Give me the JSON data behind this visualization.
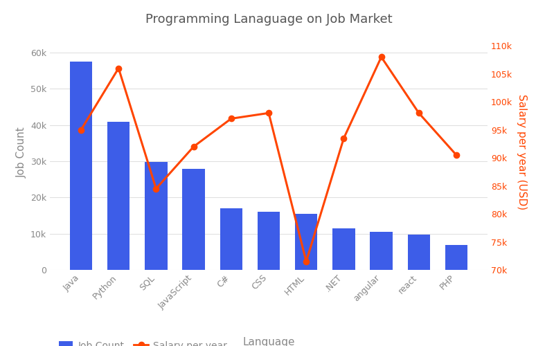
{
  "title": "Programming Lanaguage on Job Market",
  "languages": [
    "Java",
    "Python",
    "SQL",
    "JavaScript",
    "C#",
    "CSS",
    "HTML",
    ".NET",
    "angular",
    "react",
    "PHP"
  ],
  "job_counts": [
    57500,
    41000,
    29800,
    28000,
    17000,
    16000,
    15500,
    11500,
    10500,
    9800,
    6800
  ],
  "salaries": [
    95000,
    106000,
    84500,
    92000,
    97000,
    98000,
    71500,
    93500,
    108000,
    98000,
    90500
  ],
  "bar_color": "#3d5de8",
  "line_color": "#ff4500",
  "marker_color": "#ff4500",
  "ylabel_left": "Job Count",
  "ylabel_right": "Salary per year (USD)",
  "xlabel": "Language",
  "ylim_left": [
    0,
    65000
  ],
  "ylim_right": [
    70000,
    112000
  ],
  "yticks_left": [
    0,
    10000,
    20000,
    30000,
    40000,
    50000,
    60000
  ],
  "yticks_right": [
    70000,
    75000,
    80000,
    85000,
    90000,
    95000,
    100000,
    105000,
    110000
  ],
  "background_color": "#ffffff",
  "grid_color": "#e0e0e0",
  "title_color": "#555555",
  "axis_label_color": "#888888",
  "tick_color": "#888888"
}
